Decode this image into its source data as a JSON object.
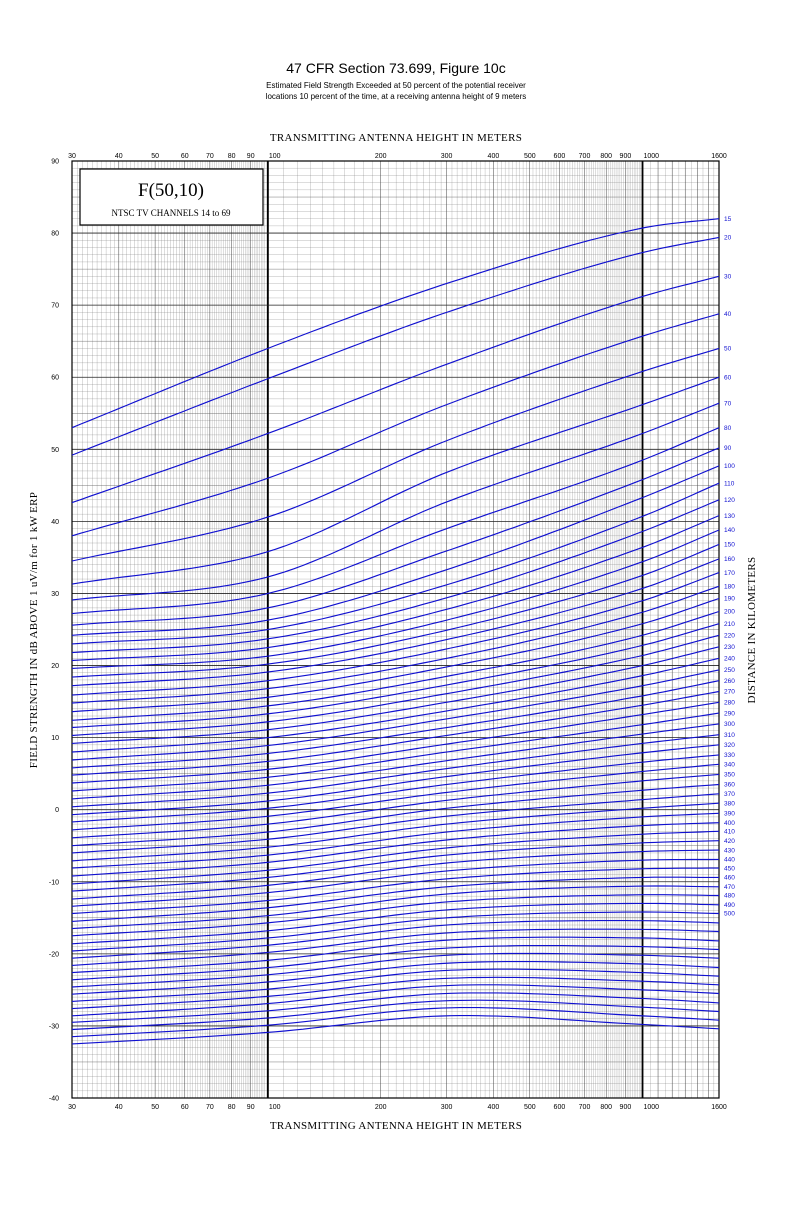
{
  "header": {
    "title": "47 CFR Section 73.699, Figure 10c",
    "subtitle_line1": "Estimated Field Strength Exceeded at 50 percent of the potential receiver",
    "subtitle_line2": "locations 10 percent of the time, at a receiving antenna height of 9 meters"
  },
  "legend_box": {
    "title": "F(50,10)",
    "subtitle": "NTSC TV CHANNELS 14 to 69"
  },
  "colors": {
    "curve": "#1010d0",
    "distance_label": "#1010d0",
    "grid": "#000000"
  },
  "chart_data": {
    "type": "line",
    "xscale": "log",
    "xlabel": "TRANSMITTING ANTENNA HEIGHT IN METERS",
    "ylabel": "FIELD STRENGTH IN dB ABOVE 1 uV/m for 1 kW ERP",
    "right_label": "DISTANCE IN KILOMETERS",
    "xlim": [
      30,
      1600
    ],
    "ylim": [
      -40,
      90
    ],
    "x_tick_labels": [
      "30",
      "40",
      "50",
      "60",
      "70",
      "80",
      "90",
      "100",
      "200",
      "300",
      "400",
      "500",
      "600",
      "700",
      "800",
      "900",
      "1000",
      "1600"
    ],
    "y_tick_labels": [
      "-40",
      "-30",
      "-20",
      "-10",
      "0",
      "10",
      "20",
      "30",
      "40",
      "50",
      "60",
      "70",
      "80",
      "90"
    ],
    "x_samples": [
      30,
      100,
      300,
      1000,
      1600
    ],
    "series": [
      {
        "name": "15",
        "values": [
          53,
          64,
          73,
          80.7,
          82
        ]
      },
      {
        "name": "20",
        "values": [
          49.2,
          59.8,
          69,
          77.3,
          79.4
        ]
      },
      {
        "name": "30",
        "values": [
          42.6,
          52.2,
          61.8,
          71.2,
          74
        ]
      },
      {
        "name": "40",
        "values": [
          38,
          46,
          56.2,
          65.7,
          68.8
        ]
      },
      {
        "name": "50",
        "values": [
          34.5,
          40.6,
          51.2,
          60.8,
          64
        ]
      },
      {
        "name": "60",
        "values": [
          31.3,
          35.8,
          46.8,
          56.2,
          60
        ]
      },
      {
        "name": "70",
        "values": [
          29.1,
          32.3,
          42.7,
          52.2,
          56.4
        ]
      },
      {
        "name": "80",
        "values": [
          27.2,
          30,
          39,
          48.5,
          53
        ]
      },
      {
        "name": "90",
        "values": [
          25.6,
          28,
          35.9,
          45.8,
          50.2
        ]
      },
      {
        "name": "100",
        "values": [
          24.2,
          26.3,
          33.3,
          43.3,
          47.7
        ]
      },
      {
        "name": "110",
        "values": [
          23,
          25,
          31.2,
          40.7,
          45.3
        ]
      },
      {
        "name": "120",
        "values": [
          21.8,
          23.7,
          29.4,
          38.6,
          43
        ]
      },
      {
        "name": "130",
        "values": [
          20.7,
          22.5,
          27.8,
          36.4,
          40.8
        ]
      },
      {
        "name": "140",
        "values": [
          19.6,
          21.3,
          26.3,
          34.4,
          38.8
        ]
      },
      {
        "name": "150",
        "values": [
          18.4,
          20.2,
          24.9,
          32.5,
          36.8
        ]
      },
      {
        "name": "160",
        "values": [
          17.2,
          19.1,
          23.6,
          30.7,
          34.8
        ]
      },
      {
        "name": "170",
        "values": [
          15.9,
          17.9,
          22.3,
          29,
          32.9
        ]
      },
      {
        "name": "180",
        "values": [
          14.8,
          16.8,
          21,
          27.4,
          31
        ]
      },
      {
        "name": "190",
        "values": [
          13.6,
          15.6,
          19.8,
          25.8,
          29.3
        ]
      },
      {
        "name": "200",
        "values": [
          12.4,
          14.4,
          18.5,
          24.2,
          27.5
        ]
      },
      {
        "name": "210",
        "values": [
          11.4,
          13.3,
          17.3,
          22.8,
          25.8
        ]
      },
      {
        "name": "220",
        "values": [
          10.3,
          12.2,
          16.1,
          21.4,
          24.2
        ]
      },
      {
        "name": "230",
        "values": [
          9.2,
          11.1,
          14.9,
          20,
          22.6
        ]
      },
      {
        "name": "240",
        "values": [
          8,
          10,
          13.7,
          18.6,
          21
        ]
      },
      {
        "name": "250",
        "values": [
          6.9,
          8.9,
          12.6,
          17.2,
          19.4
        ]
      },
      {
        "name": "260",
        "values": [
          5.8,
          7.8,
          11.4,
          15.8,
          17.9
        ]
      },
      {
        "name": "270",
        "values": [
          4.8,
          6.7,
          10.3,
          14.5,
          16.4
        ]
      },
      {
        "name": "280",
        "values": [
          3.7,
          5.6,
          9.1,
          13.2,
          14.9
        ]
      },
      {
        "name": "290",
        "values": [
          2.6,
          4.5,
          8,
          11.8,
          13.4
        ]
      },
      {
        "name": "300",
        "values": [
          1.5,
          3.4,
          6.8,
          10.5,
          11.9
        ]
      },
      {
        "name": "310",
        "values": [
          0.4,
          2.3,
          5.7,
          9.2,
          10.4
        ]
      },
      {
        "name": "320",
        "values": [
          -0.7,
          1.2,
          4.6,
          7.9,
          9
        ]
      },
      {
        "name": "330",
        "values": [
          -1.7,
          0.2,
          3.5,
          6.6,
          7.6
        ]
      },
      {
        "name": "340",
        "values": [
          -2.8,
          -0.9,
          2.4,
          5.3,
          6.3
        ]
      },
      {
        "name": "350",
        "values": [
          -3.9,
          -2,
          1.3,
          4,
          4.9
        ]
      },
      {
        "name": "360",
        "values": [
          -5,
          -3.1,
          0.2,
          2.7,
          3.5
        ]
      },
      {
        "name": "370",
        "values": [
          -6,
          -4.1,
          -0.9,
          1.4,
          2.2
        ]
      },
      {
        "name": "380",
        "values": [
          -7.1,
          -5.2,
          -2,
          0.2,
          0.9
        ]
      },
      {
        "name": "390",
        "values": [
          -8.1,
          -6.3,
          -3.1,
          -1,
          -0.5
        ]
      },
      {
        "name": "400",
        "values": [
          -9.2,
          -7.3,
          -4.2,
          -2.2,
          -1.8
        ]
      },
      {
        "name": "410",
        "values": [
          -10.3,
          -8.4,
          -5.3,
          -3.4,
          -3
        ]
      },
      {
        "name": "420",
        "values": [
          -11.3,
          -9.4,
          -6.3,
          -4.6,
          -4.3
        ]
      },
      {
        "name": "430",
        "values": [
          -12.4,
          -10.5,
          -7.4,
          -5.8,
          -5.6
        ]
      },
      {
        "name": "440",
        "values": [
          -13.4,
          -11.5,
          -8.5,
          -7,
          -6.9
        ]
      },
      {
        "name": "450",
        "values": [
          -14.4,
          -12.6,
          -9.6,
          -8.2,
          -8.1
        ]
      },
      {
        "name": "460",
        "values": [
          -15.5,
          -13.6,
          -10.7,
          -9.4,
          -9.4
        ]
      },
      {
        "name": "470",
        "values": [
          -16.5,
          -14.7,
          -11.7,
          -10.6,
          -10.7
        ]
      },
      {
        "name": "480",
        "values": [
          -17.5,
          -15.7,
          -12.8,
          -11.8,
          -11.9
        ]
      },
      {
        "name": "490",
        "values": [
          -18.6,
          -16.8,
          -13.9,
          -13,
          -13.2
        ]
      },
      {
        "name": "500",
        "values": [
          -19.6,
          -17.8,
          -15,
          -14.2,
          -14.4
        ]
      },
      {
        "name": "",
        "values": [
          -20.6,
          -18.8,
          -16,
          -15.4,
          -15.7
        ]
      },
      {
        "name": "",
        "values": [
          -21.6,
          -19.8,
          -17.1,
          -16.6,
          -16.9
        ]
      },
      {
        "name": "",
        "values": [
          -22.6,
          -20.9,
          -18.1,
          -17.8,
          -18.2
        ]
      },
      {
        "name": "",
        "values": [
          -23.6,
          -21.9,
          -19.2,
          -19,
          -19.4
        ]
      },
      {
        "name": "",
        "values": [
          -24.6,
          -22.9,
          -20.2,
          -20.2,
          -20.6
        ]
      },
      {
        "name": "",
        "values": [
          -25.6,
          -23.9,
          -21.3,
          -21.4,
          -21.9
        ]
      },
      {
        "name": "",
        "values": [
          -26.6,
          -24.9,
          -22.3,
          -22.6,
          -23.1
        ]
      },
      {
        "name": "",
        "values": [
          -27.6,
          -25.9,
          -23.4,
          -23.8,
          -24.3
        ]
      },
      {
        "name": "",
        "values": [
          -28.6,
          -26.9,
          -24.4,
          -25,
          -25.5
        ]
      },
      {
        "name": "",
        "values": [
          -29.5,
          -27.9,
          -25.5,
          -26.2,
          -26.8
        ]
      },
      {
        "name": "",
        "values": [
          -30.5,
          -28.9,
          -26.5,
          -27.4,
          -28
        ]
      },
      {
        "name": "",
        "values": [
          -31.5,
          -29.9,
          -27.5,
          -28.6,
          -29.2
        ]
      },
      {
        "name": "",
        "values": [
          -32.5,
          -30.9,
          -28.6,
          -29.8,
          -30.4
        ]
      }
    ]
  }
}
